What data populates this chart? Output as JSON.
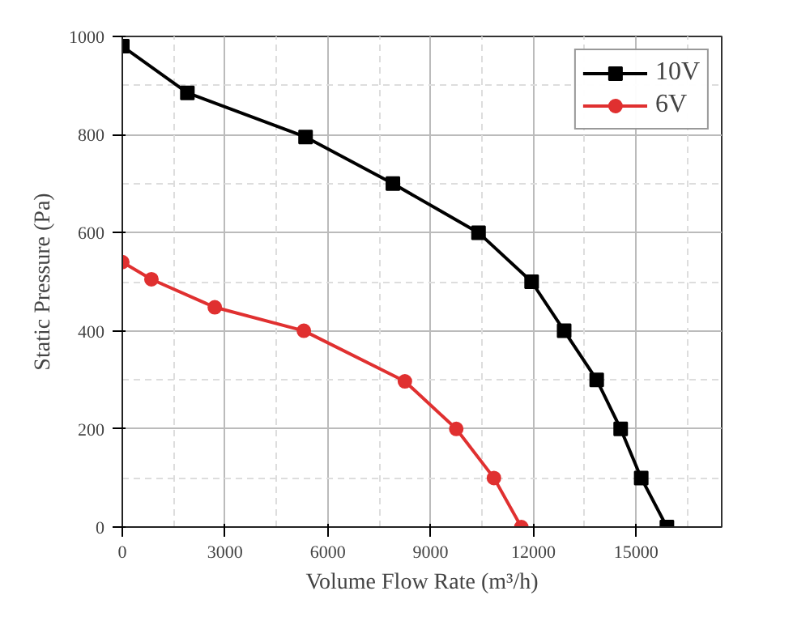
{
  "chart_data": {
    "type": "line",
    "xlabel": "Volume Flow Rate (m³/h)",
    "ylabel": "Static Pressure (Pa)",
    "xlim": [
      0,
      17500
    ],
    "ylim": [
      0,
      1000
    ],
    "xticks": [
      0,
      3000,
      6000,
      9000,
      12000,
      15000
    ],
    "yticks": [
      0,
      200,
      400,
      600,
      800,
      1000
    ],
    "grid": true,
    "legend": "top right",
    "line_style": "solid",
    "series": [
      {
        "name": "10V",
        "color": "#000000",
        "marker": "square",
        "x": [
          0,
          1900,
          5350,
          7900,
          10400,
          11950,
          12900,
          13850,
          14550,
          15150,
          15900
        ],
        "values": [
          980,
          885,
          795,
          700,
          600,
          500,
          400,
          300,
          200,
          100,
          0
        ]
      },
      {
        "name": "6V",
        "color": "#e03030",
        "marker": "circle",
        "x": [
          0,
          850,
          2700,
          5300,
          8250,
          9750,
          10850,
          11650
        ],
        "values": [
          540,
          505,
          448,
          400,
          297,
          200,
          100,
          0
        ]
      }
    ]
  }
}
